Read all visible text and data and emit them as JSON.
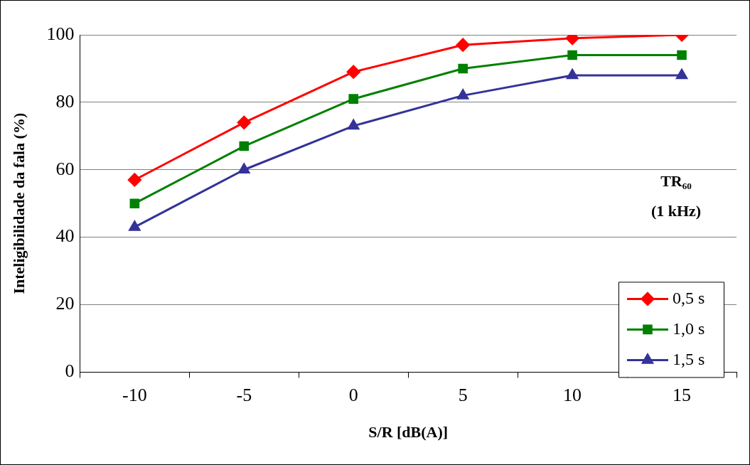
{
  "chart_data": {
    "type": "line",
    "xlabel": "S/R [dB(A)]",
    "ylabel": "Inteligibilidade da fala (%)",
    "categories": [
      "-10",
      "-5",
      "0",
      "5",
      "10",
      "15"
    ],
    "ylim": [
      0,
      100
    ],
    "yticks": [
      0,
      20,
      40,
      60,
      80,
      100
    ],
    "grid": "y",
    "legend": "bottom right",
    "line_style": "solid",
    "annotations": [
      "TR₆₀",
      "(1 kHz)"
    ],
    "series": [
      {
        "name": "0,5 s",
        "color": "#ff0000",
        "marker": "diamond",
        "values": [
          57,
          74,
          89,
          97,
          99,
          100
        ]
      },
      {
        "name": "1,0 s",
        "color": "#008000",
        "marker": "square",
        "values": [
          50,
          67,
          81,
          90,
          94,
          94
        ]
      },
      {
        "name": "1,5 s",
        "color": "#333399",
        "marker": "triangle",
        "values": [
          43,
          60,
          73,
          82,
          88,
          88
        ]
      }
    ]
  }
}
